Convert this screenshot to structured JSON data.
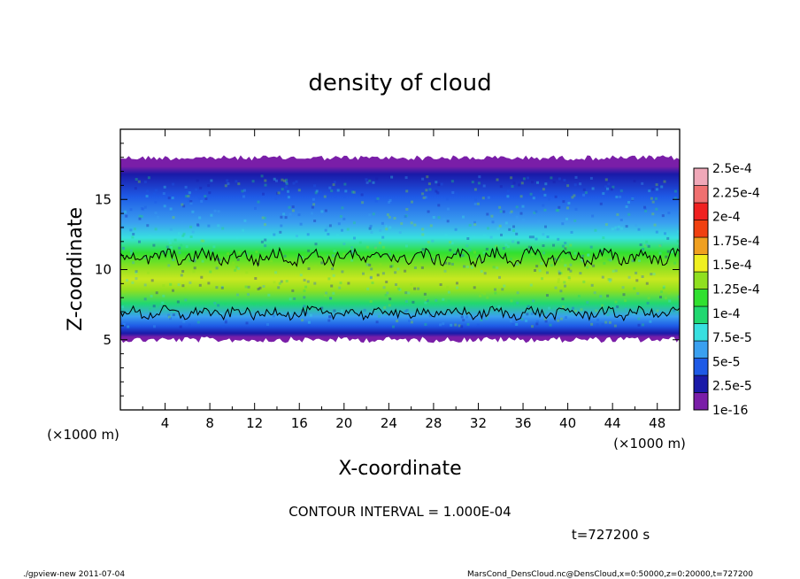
{
  "chart_data": {
    "type": "heatmap",
    "title": "density of cloud",
    "xlabel": "X-coordinate",
    "ylabel": "Z-coordinate",
    "x_unit": "(×1000 m)",
    "y_unit": "(×1000 m)",
    "xlim": [
      0,
      50
    ],
    "ylim": [
      0,
      20
    ],
    "x_ticks": [
      "4",
      "8",
      "12",
      "16",
      "20",
      "24",
      "28",
      "32",
      "36",
      "40",
      "44",
      "48"
    ],
    "y_ticks": [
      "5",
      "10",
      "15"
    ],
    "colorbar": {
      "levels": [
        "1e-16",
        "2.5e-5",
        "5e-5",
        "7.5e-5",
        "1e-4",
        "1.25e-4",
        "1.5e-4",
        "1.75e-4",
        "2e-4",
        "2.25e-4",
        "2.5e-4"
      ],
      "colors": [
        "#7a1ea8",
        "#1a1aa8",
        "#1e5ae6",
        "#3aa0f0",
        "#38e0e0",
        "#20d870",
        "#30e030",
        "#90e020",
        "#f0f020",
        "#f0a020",
        "#f04010",
        "#f02020",
        "#f07070",
        "#f0a8b8"
      ]
    },
    "cloud_layer_z": [
      5,
      18
    ],
    "contour_level": 0.0001,
    "contour_interval": "CONTOUR INTERVAL = 1.000E-04",
    "time": "t=727200 s"
  },
  "footer": {
    "left": "./gpview-new  2011-07-04",
    "right": "MarsCond_DensCloud.nc@DensCloud,x=0:50000,z=0:20000,t=727200"
  }
}
